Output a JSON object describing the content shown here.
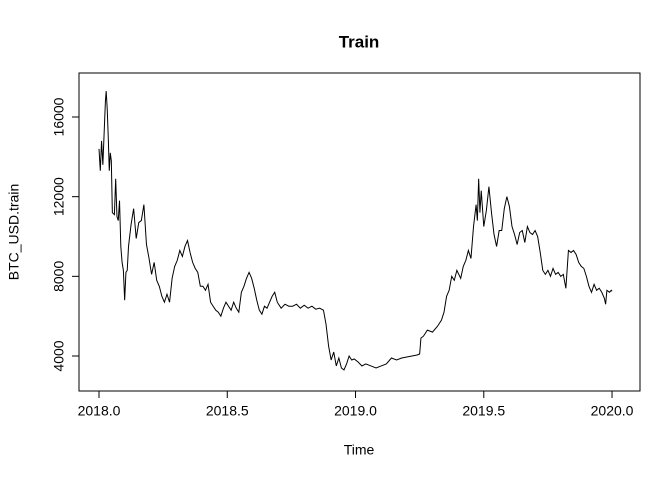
{
  "chart_data": {
    "type": "line",
    "title": "Train",
    "x_label": "Time",
    "y_label": "BTC_USD.train",
    "color": "#000000",
    "x": [
      2018.0,
      2018.005,
      2018.01,
      2018.015,
      2018.02,
      2018.025,
      2018.028,
      2018.032,
      2018.036,
      2018.04,
      2018.044,
      2018.048,
      2018.052,
      2018.06,
      2018.065,
      2018.07,
      2018.075,
      2018.08,
      2018.085,
      2018.09,
      2018.095,
      2018.1,
      2018.105,
      2018.11,
      2018.115,
      2018.125,
      2018.135,
      2018.145,
      2018.155,
      2018.165,
      2018.175,
      2018.185,
      2018.195,
      2018.205,
      2018.215,
      2018.225,
      2018.235,
      2018.245,
      2018.255,
      2018.265,
      2018.275,
      2018.285,
      2018.295,
      2018.305,
      2018.315,
      2018.325,
      2018.335,
      2018.345,
      2018.355,
      2018.365,
      2018.375,
      2018.385,
      2018.395,
      2018.405,
      2018.415,
      2018.425,
      2018.435,
      2018.445,
      2018.455,
      2018.465,
      2018.475,
      2018.485,
      2018.495,
      2018.505,
      2018.515,
      2018.525,
      2018.535,
      2018.545,
      2018.555,
      2018.565,
      2018.575,
      2018.585,
      2018.595,
      2018.605,
      2018.615,
      2018.625,
      2018.635,
      2018.645,
      2018.655,
      2018.665,
      2018.675,
      2018.685,
      2018.695,
      2018.71,
      2018.725,
      2018.74,
      2018.755,
      2018.77,
      2018.785,
      2018.8,
      2018.815,
      2018.83,
      2018.845,
      2018.86,
      2018.875,
      2018.885,
      2018.895,
      2018.905,
      2018.915,
      2018.925,
      2018.935,
      2018.945,
      2018.955,
      2018.965,
      2018.975,
      2018.985,
      2018.995,
      2019.01,
      2019.025,
      2019.04,
      2019.06,
      2019.08,
      2019.1,
      2019.12,
      2019.14,
      2019.16,
      2019.18,
      2019.2,
      2019.22,
      2019.24,
      2019.25,
      2019.255,
      2019.265,
      2019.28,
      2019.3,
      2019.32,
      2019.335,
      2019.345,
      2019.355,
      2019.365,
      2019.375,
      2019.385,
      2019.395,
      2019.41,
      2019.42,
      2019.43,
      2019.44,
      2019.45,
      2019.46,
      2019.47,
      2019.475,
      2019.48,
      2019.485,
      2019.49,
      2019.5,
      2019.51,
      2019.52,
      2019.53,
      2019.54,
      2019.55,
      2019.56,
      2019.57,
      2019.58,
      2019.59,
      2019.6,
      2019.61,
      2019.62,
      2019.63,
      2019.64,
      2019.65,
      2019.66,
      2019.67,
      2019.68,
      2019.69,
      2019.7,
      2019.71,
      2019.72,
      2019.73,
      2019.74,
      2019.75,
      2019.76,
      2019.77,
      2019.78,
      2019.79,
      2019.8,
      2019.81,
      2019.82,
      2019.83,
      2019.84,
      2019.85,
      2019.86,
      2019.87,
      2019.88,
      2019.89,
      2019.9,
      2019.91,
      2019.92,
      2019.93,
      2019.94,
      2019.95,
      2019.96,
      2019.97,
      2019.975,
      2019.98,
      2019.99,
      2019.997,
      2020.0
    ],
    "values": [
      14400,
      13300,
      14800,
      13600,
      15200,
      16800,
      17300,
      16400,
      15000,
      13300,
      14200,
      13800,
      11200,
      11100,
      12900,
      11000,
      10800,
      11800,
      9500,
      8700,
      8300,
      6800,
      8200,
      8300,
      9500,
      10600,
      11400,
      9900,
      10700,
      10800,
      11600,
      9600,
      8900,
      8100,
      8700,
      7800,
      7500,
      7000,
      6700,
      7100,
      6700,
      7900,
      8500,
      8800,
      9300,
      9000,
      9500,
      9800,
      9200,
      8700,
      8400,
      8200,
      7500,
      7500,
      7300,
      7600,
      6700,
      6500,
      6300,
      6200,
      6000,
      6400,
      6700,
      6500,
      6300,
      6700,
      6400,
      6200,
      7200,
      7500,
      7900,
      8200,
      7900,
      7400,
      6800,
      6300,
      6100,
      6500,
      6400,
      6700,
      7000,
      7200,
      6700,
      6400,
      6600,
      6500,
      6500,
      6600,
      6400,
      6550,
      6400,
      6500,
      6350,
      6400,
      6300,
      5600,
      4500,
      3800,
      4200,
      3500,
      3900,
      3400,
      3300,
      3600,
      4000,
      3800,
      3850,
      3700,
      3500,
      3600,
      3500,
      3400,
      3500,
      3600,
      3900,
      3800,
      3900,
      3950,
      4000,
      4050,
      4100,
      4900,
      5000,
      5300,
      5200,
      5500,
      5800,
      6200,
      7000,
      7300,
      8000,
      7800,
      8300,
      7900,
      8500,
      8800,
      9300,
      8900,
      10500,
      11600,
      10800,
      12900,
      11200,
      12300,
      10500,
      11300,
      12500,
      11200,
      10100,
      9500,
      10300,
      10300,
      11400,
      12000,
      11500,
      10500,
      10100,
      9600,
      10200,
      10300,
      9700,
      10500,
      10200,
      10100,
      10300,
      10000,
      9200,
      8300,
      8100,
      8300,
      8000,
      8400,
      8100,
      8200,
      8000,
      8100,
      7400,
      9300,
      9200,
      9300,
      9100,
      8700,
      8500,
      8400,
      8000,
      7500,
      7200,
      7600,
      7300,
      7400,
      7200,
      6900,
      6600,
      7300,
      7200,
      7300,
      7250
    ],
    "xlim": [
      2017.922,
      2020.109
    ],
    "ylim": [
      2243,
      18209
    ],
    "xticks": [
      {
        "value": 2018,
        "label": "2018.0"
      },
      {
        "value": 2018.5,
        "label": "2018.5"
      },
      {
        "value": 2019,
        "label": "2019.0"
      },
      {
        "value": 2019.5,
        "label": "2019.5"
      },
      {
        "value": 2020,
        "label": "2020.0"
      }
    ],
    "yticks": [
      4000,
      8000,
      12000,
      16000
    ]
  }
}
